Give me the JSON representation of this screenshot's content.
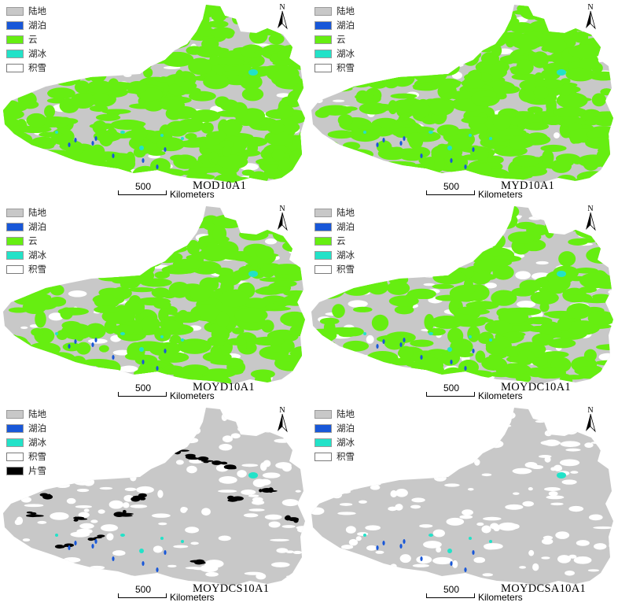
{
  "colors": {
    "land": "#c8c8c8",
    "lake": "#1857d8",
    "cloud": "#66ee11",
    "lake_ice": "#22e2c8",
    "snow": "#ffffff",
    "patch_snow": "#000000"
  },
  "legend_labels": {
    "land": "陆地",
    "lake": "湖泊",
    "cloud": "云",
    "lake_ice": "湖冰",
    "snow": "积雪",
    "patch_snow": "片雪"
  },
  "north_label": "N",
  "scale": {
    "value": "500",
    "unit": "Kilometers"
  },
  "panels": [
    {
      "title": "MOD10A1",
      "legend": [
        "land",
        "lake",
        "cloud",
        "lake_ice",
        "snow"
      ],
      "cloud_cover": 0.85,
      "snow_cover": 0.1
    },
    {
      "title": "MYD10A1",
      "legend": [
        "land",
        "lake",
        "cloud",
        "lake_ice",
        "snow"
      ],
      "cloud_cover": 0.9,
      "snow_cover": 0.05
    },
    {
      "title": "MOYD10A1",
      "legend": [
        "land",
        "lake",
        "cloud",
        "lake_ice",
        "snow"
      ],
      "cloud_cover": 0.7,
      "snow_cover": 0.15
    },
    {
      "title": "MOYDC10A1",
      "legend": [
        "land",
        "lake",
        "cloud",
        "lake_ice",
        "snow"
      ],
      "cloud_cover": 0.6,
      "snow_cover": 0.25
    },
    {
      "title": "MOYDCS10A1",
      "legend": [
        "land",
        "lake",
        "lake_ice",
        "snow",
        "patch_snow"
      ],
      "cloud_cover": 0.0,
      "snow_cover": 0.4
    },
    {
      "title": "MOYDCSA10A1",
      "legend": [
        "land",
        "lake",
        "lake_ice",
        "snow"
      ],
      "cloud_cover": 0.0,
      "snow_cover": 0.45
    }
  ]
}
